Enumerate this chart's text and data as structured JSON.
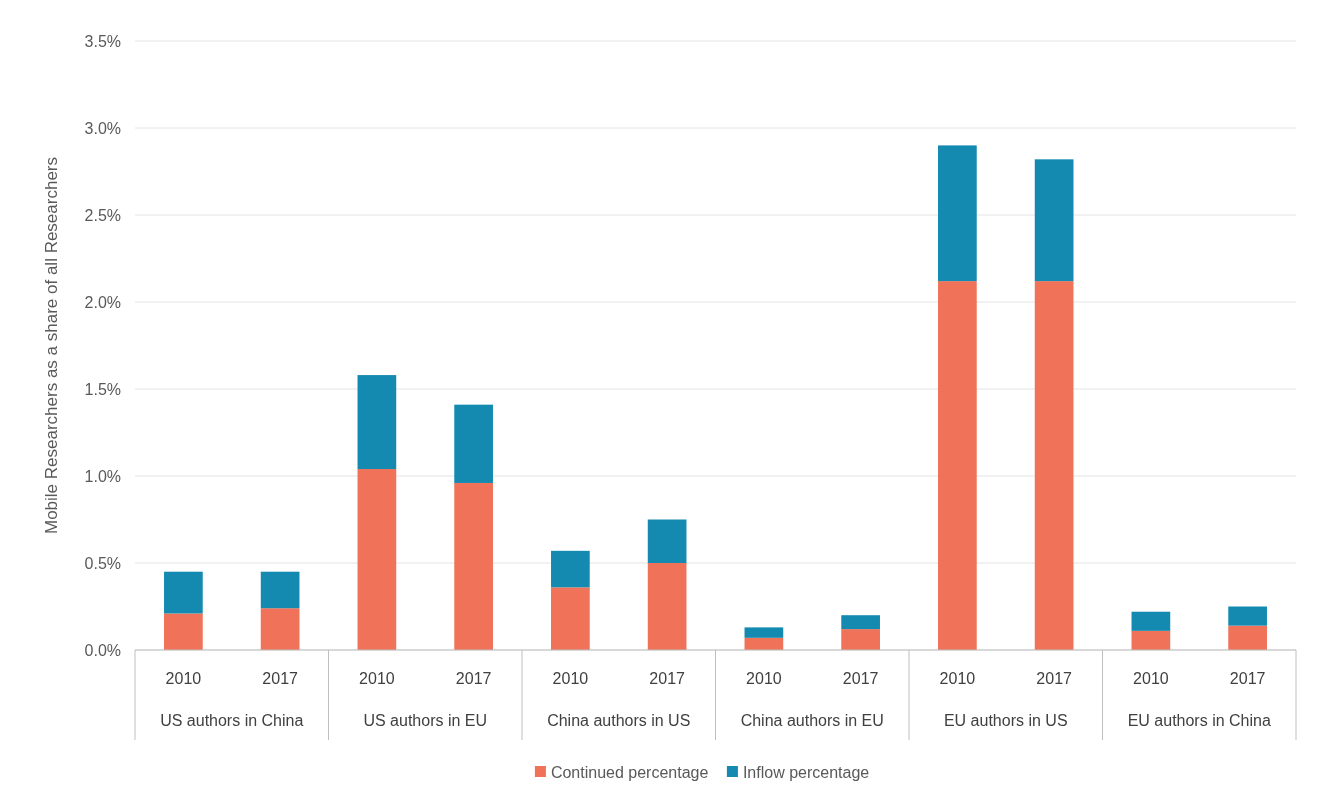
{
  "chart_data": {
    "type": "bar",
    "stacked": true,
    "ylabel": "Mobile Researchers as a share of all Researchers",
    "categories": [
      "2010",
      "2017",
      "2010",
      "2017",
      "2010",
      "2017",
      "2010",
      "2017",
      "2010",
      "2017",
      "2010",
      "2017"
    ],
    "series": [
      {
        "name": "Continued percentage",
        "color": "#f07259",
        "values": [
          0.21,
          0.24,
          1.04,
          0.96,
          0.36,
          0.5,
          0.07,
          0.12,
          2.12,
          2.12,
          0.11,
          0.14
        ]
      },
      {
        "name": "Inflow percentage",
        "color": "#148ab0",
        "values": [
          0.24,
          0.21,
          0.54,
          0.45,
          0.21,
          0.25,
          0.06,
          0.08,
          0.78,
          0.7,
          0.11,
          0.11
        ]
      }
    ],
    "annotations": [
      "US authors in China",
      "US authors in EU",
      "China authors in US",
      "China authors in EU",
      "EU authors in US",
      "EU authors in China"
    ],
    "ylim": [
      0,
      3.5
    ],
    "yticks": [
      {
        "value": 0,
        "label": "0.0%"
      },
      {
        "value": 0.5,
        "label": "0.5%"
      },
      {
        "value": 1,
        "label": "1.0%"
      },
      {
        "value": 1.5,
        "label": "1.5%"
      },
      {
        "value": 2,
        "label": "2.0%"
      },
      {
        "value": 2.5,
        "label": "2.5%"
      },
      {
        "value": 3,
        "label": "3.0%"
      },
      {
        "value": 3.5,
        "label": "3.5%"
      }
    ],
    "grid": "y",
    "legend": "bottom"
  }
}
